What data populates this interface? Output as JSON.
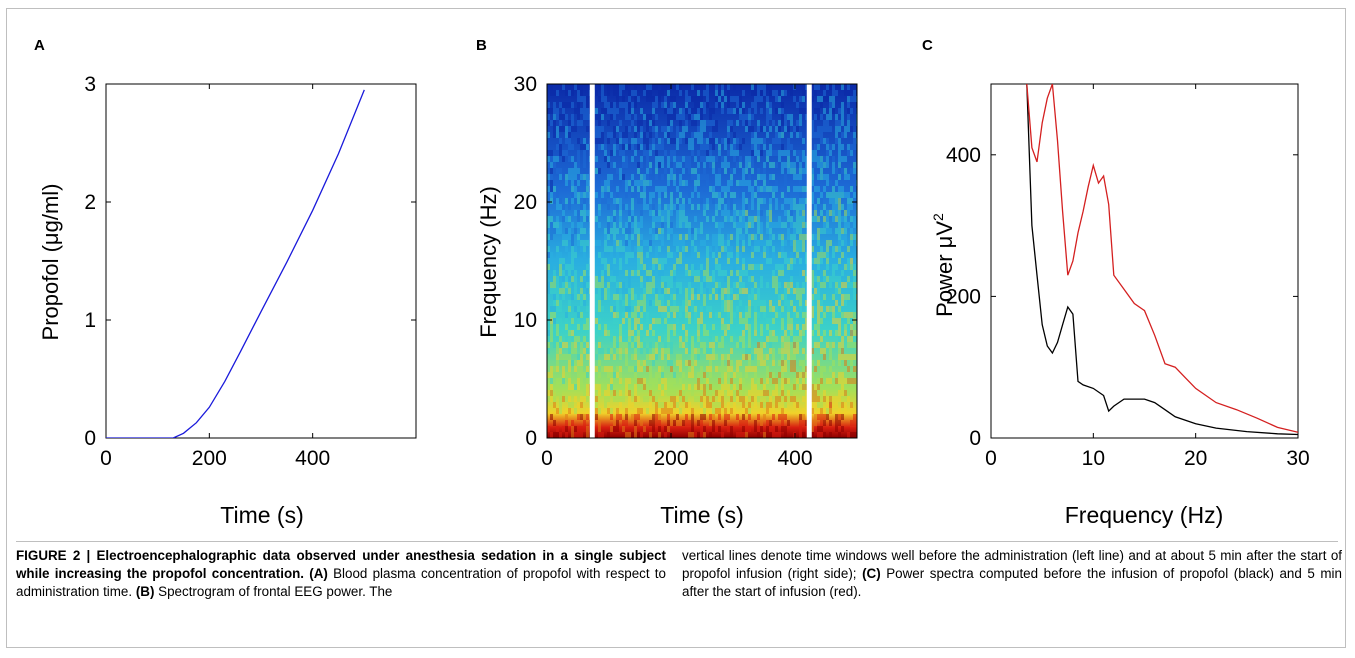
{
  "figure": {
    "panels": [
      {
        "label": "A",
        "xlabel": "Time (s)",
        "ylabel_parts": [
          "Propofol (",
          "μ",
          "g/ml)"
        ],
        "xticks": [
          "0",
          "200",
          "400"
        ],
        "yticks": [
          "0",
          "1",
          "2",
          "3"
        ]
      },
      {
        "label": "B",
        "xlabel": "Time (s)",
        "ylabel": "Frequency (Hz)",
        "xticks": [
          "0",
          "200",
          "400"
        ],
        "yticks": [
          "0",
          "10",
          "20",
          "30"
        ]
      },
      {
        "label": "C",
        "xlabel": "Frequency (Hz)",
        "ylabel_parts": [
          "Power ",
          "μ",
          "V",
          "2"
        ],
        "xticks": [
          "0",
          "10",
          "20",
          "30"
        ],
        "yticks": [
          "0",
          "200",
          "400"
        ]
      }
    ]
  },
  "caption": {
    "left_title": "FIGURE 2 | Electroencephalographic data observed under anesthesia sedation in a single subject while increasing the propofol concentration.",
    "left_a_label": "(A)",
    "left_a_text": "Blood plasma concentration of propofol with respect to administration time.",
    "left_b_label": "(B)",
    "left_b_text": "Spectrogram of frontal EEG power. The",
    "right_text1": "vertical lines denote time windows well before the administration (left line) and at about 5 min after the start of propofol infusion (right side);",
    "right_c_label": "(C)",
    "right_text2": "Power spectra computed before the infusion of propofol (black) and 5 min after the start of infusion (red)."
  },
  "chart_data": [
    {
      "type": "line",
      "xlim": [
        0,
        600
      ],
      "ylim": [
        0,
        3
      ],
      "series": [
        {
          "color": "#1a1adb",
          "x": [
            0,
            130,
            150,
            175,
            200,
            230,
            260,
            300,
            350,
            400,
            450,
            500
          ],
          "y": [
            0,
            0,
            0.04,
            0.13,
            0.26,
            0.48,
            0.73,
            1.07,
            1.49,
            1.93,
            2.41,
            2.95
          ]
        }
      ]
    },
    {
      "type": "heatmap",
      "xlim": [
        0,
        500
      ],
      "ylim": [
        0,
        30
      ],
      "colormap": "jet",
      "white_lines_x": [
        73,
        423
      ]
    },
    {
      "type": "line",
      "xlim": [
        0,
        30
      ],
      "ylim": [
        0,
        500
      ],
      "series": [
        {
          "color": "#000000",
          "x": [
            3.5,
            4,
            4.5,
            5,
            5.5,
            6,
            6.5,
            7,
            7.5,
            8,
            8.5,
            9,
            10,
            11,
            11.5,
            12,
            13,
            15,
            16,
            17,
            18,
            20,
            22,
            25,
            28,
            30
          ],
          "y": [
            500,
            300,
            230,
            160,
            130,
            120,
            135,
            160,
            185,
            175,
            80,
            75,
            70,
            60,
            38,
            45,
            55,
            55,
            50,
            40,
            30,
            20,
            14,
            9,
            6,
            5
          ]
        },
        {
          "color": "#d42020",
          "x": [
            3.5,
            4,
            4.5,
            5,
            5.5,
            6,
            6.5,
            7,
            7.5,
            8,
            8.5,
            9,
            9.5,
            10,
            10.5,
            11,
            11.5,
            12,
            13,
            14,
            15,
            16,
            17,
            18,
            19,
            20,
            22,
            24,
            26,
            28,
            30
          ],
          "y": [
            500,
            410,
            390,
            445,
            480,
            500,
            420,
            320,
            230,
            250,
            290,
            320,
            355,
            385,
            360,
            370,
            330,
            230,
            210,
            190,
            180,
            145,
            105,
            100,
            85,
            70,
            50,
            40,
            28,
            15,
            8
          ]
        }
      ]
    }
  ]
}
